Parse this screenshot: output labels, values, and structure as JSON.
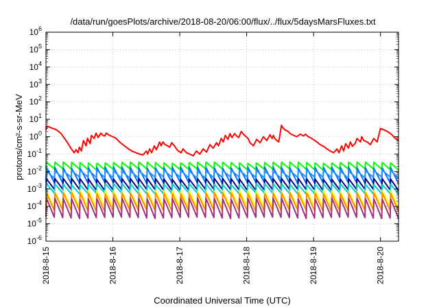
{
  "chart_data": {
    "type": "line",
    "title": "/data/run/goesPlots/archive/2018-08-20/06:00/flux/../flux/5daysMarsFluxes.txt",
    "xlabel": "Coordinated Universal Time (UTC)",
    "ylabel": "protons/cm²-s-sr-MeV",
    "y_scale": "log",
    "ylim": [
      1e-06,
      1000000.0
    ],
    "y_ticks": [
      {
        "value": 1e-06,
        "base": "10",
        "exp": "-6"
      },
      {
        "value": 1e-05,
        "base": "10",
        "exp": "-5"
      },
      {
        "value": 0.0001,
        "base": "10",
        "exp": "-4"
      },
      {
        "value": 0.001,
        "base": "10",
        "exp": "-3"
      },
      {
        "value": 0.01,
        "base": "10",
        "exp": "-2"
      },
      {
        "value": 0.1,
        "base": "10",
        "exp": "-1"
      },
      {
        "value": 1,
        "base": "10",
        "exp": "0"
      },
      {
        "value": 10,
        "base": "10",
        "exp": "1"
      },
      {
        "value": 100,
        "base": "10",
        "exp": "2"
      },
      {
        "value": 1000,
        "base": "10",
        "exp": "3"
      },
      {
        "value": 10000,
        "base": "10",
        "exp": "4"
      },
      {
        "value": 100000,
        "base": "10",
        "exp": "5"
      },
      {
        "value": 1000000,
        "base": "10",
        "exp": "6"
      }
    ],
    "xlim": [
      0,
      5.27
    ],
    "x_ticks": [
      {
        "value": 0,
        "label": "2018-8-15"
      },
      {
        "value": 1,
        "label": "2018-8-16"
      },
      {
        "value": 2,
        "label": "2018-8-17"
      },
      {
        "value": 3,
        "label": "2018-8-18"
      },
      {
        "value": 4,
        "label": "2018-8-19"
      },
      {
        "value": 5,
        "label": "2018-8-20"
      }
    ],
    "grid": true,
    "legend": "none",
    "series": [
      {
        "color": "#ff0000",
        "x": [
          0.0,
          0.02,
          0.08,
          0.15,
          0.22,
          0.3,
          0.38,
          0.42,
          0.45,
          0.48,
          0.5,
          0.53,
          0.56,
          0.6,
          0.62,
          0.66,
          0.68,
          0.72,
          0.75,
          0.78,
          0.82,
          0.85,
          0.88,
          0.9,
          0.95,
          1.0,
          1.05,
          1.1,
          1.15,
          1.2,
          1.25,
          1.3,
          1.35,
          1.4,
          1.45,
          1.5,
          1.52,
          1.55,
          1.58,
          1.62,
          1.65,
          1.7,
          1.72,
          1.75,
          1.78,
          1.82,
          1.85,
          1.88,
          1.92,
          1.95,
          1.98,
          2.02,
          2.05,
          2.1,
          2.15,
          2.2,
          2.25,
          2.3,
          2.35,
          2.4,
          2.45,
          2.5,
          2.55,
          2.58,
          2.62,
          2.65,
          2.68,
          2.72,
          2.75,
          2.78,
          2.82,
          2.85,
          2.88,
          2.92,
          2.95,
          2.98,
          3.02,
          3.05,
          3.1,
          3.15,
          3.2,
          3.25,
          3.3,
          3.35,
          3.38,
          3.4,
          3.42,
          3.45,
          3.48,
          3.52,
          3.55,
          3.58,
          3.62,
          3.65,
          3.7,
          3.75,
          3.8,
          3.85,
          3.88,
          3.92,
          3.95,
          3.98,
          4.02,
          4.05,
          4.1,
          4.15,
          4.2,
          4.25,
          4.3,
          4.35,
          4.38,
          4.42,
          4.45,
          4.48,
          4.52,
          4.55,
          4.58,
          4.62,
          4.65,
          4.7,
          4.72,
          4.75,
          4.8,
          4.85,
          4.9,
          4.95,
          5.0,
          5.05,
          5.08,
          5.12,
          5.15,
          5.18,
          5.22,
          5.27
        ],
        "y": [
          2.5,
          4.0,
          3.2,
          2.6,
          1.6,
          0.6,
          0.2,
          0.12,
          0.18,
          0.12,
          0.25,
          0.15,
          0.6,
          0.3,
          0.8,
          0.4,
          1.2,
          0.8,
          1.6,
          0.9,
          1.6,
          1.2,
          1.1,
          1.6,
          1.2,
          1.0,
          0.8,
          0.5,
          0.35,
          0.25,
          0.18,
          0.14,
          0.12,
          0.1,
          0.09,
          0.15,
          0.1,
          0.2,
          0.12,
          0.3,
          0.18,
          0.5,
          0.3,
          0.5,
          0.35,
          0.3,
          0.25,
          0.45,
          0.3,
          0.2,
          0.15,
          0.12,
          0.2,
          0.12,
          0.1,
          0.08,
          0.15,
          0.1,
          0.2,
          0.13,
          0.35,
          0.22,
          0.45,
          0.3,
          0.8,
          0.5,
          1.2,
          0.7,
          1.5,
          0.9,
          1.5,
          1.1,
          0.9,
          2.0,
          1.4,
          1.1,
          0.8,
          0.45,
          0.3,
          0.7,
          0.45,
          1.0,
          0.6,
          1.3,
          0.8,
          1.2,
          0.8,
          0.6,
          0.5,
          4.5,
          3.0,
          2.4,
          2.0,
          1.5,
          1.2,
          1.0,
          1.4,
          1.1,
          1.4,
          1.0,
          0.9,
          0.75,
          0.6,
          0.5,
          0.35,
          0.28,
          0.2,
          0.15,
          0.12,
          0.2,
          0.12,
          0.3,
          0.15,
          0.4,
          0.22,
          0.5,
          0.28,
          0.4,
          0.8,
          0.5,
          1.0,
          0.6,
          0.5,
          0.35,
          0.8,
          0.5,
          3.0,
          2.5,
          2.2,
          1.8,
          1.5,
          1.2,
          0.8,
          0.6
        ]
      },
      {
        "color": "#00ff00",
        "peak": 0.035,
        "trough": 0.012,
        "cycles": 42
      },
      {
        "color": "#0070ff",
        "peak": 0.018,
        "trough": 0.002,
        "cycles": 42
      },
      {
        "color": "#1e90ff",
        "peak": 0.012,
        "trough": 0.004,
        "cycles": 42
      },
      {
        "color": "#000080",
        "peak": 0.004,
        "trough": 0.0008,
        "cycles": 42
      },
      {
        "color": "#00cccc",
        "peak": 0.002,
        "trough": 0.0005,
        "cycles": 42
      },
      {
        "color": "#ffff00",
        "peak": 0.0008,
        "trough": 8e-05,
        "cycles": 42
      },
      {
        "color": "#ff8c00",
        "peak": 0.0006,
        "trough": 5e-05,
        "cycles": 42
      },
      {
        "color": "#a0307a",
        "peak": 0.0003,
        "trough": 2e-05,
        "cycles": 42
      }
    ]
  }
}
